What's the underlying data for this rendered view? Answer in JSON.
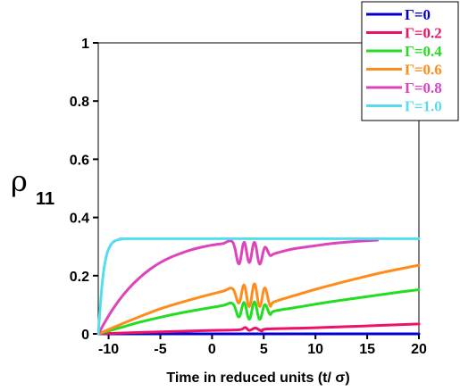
{
  "chart_data": {
    "type": "line",
    "title": "",
    "xlabel": "Time in reduced units (t/ σ)",
    "ylabel": {
      "symbol": "ρ",
      "subscript": "11"
    },
    "xlim": [
      -11,
      20
    ],
    "ylim": [
      0,
      1
    ],
    "x_ticks": [
      -10,
      -5,
      0,
      5,
      10,
      15,
      20
    ],
    "x_tick_labels": [
      "-10",
      "-5",
      "0",
      "5",
      "10",
      "15",
      "20"
    ],
    "y_ticks": [
      0,
      0.2,
      0.4,
      0.6,
      0.8,
      1
    ],
    "y_tick_labels": [
      "0",
      "0.2",
      "0.4",
      "0.6",
      "0.8",
      "1"
    ],
    "grid": false,
    "legend_position": "top-right",
    "series": [
      {
        "name": "Γ=0",
        "color": "#0000cc",
        "x": [
          -11,
          20
        ],
        "y": [
          0,
          0
        ]
      },
      {
        "name": "Γ=0.2",
        "color": "#ee1166",
        "x": [
          -11,
          -5,
          0,
          2.6,
          3.2,
          3.6,
          4.2,
          4.8,
          5.4,
          10,
          20
        ],
        "y": [
          0,
          0.007,
          0.012,
          0.014,
          0.022,
          0.012,
          0.02,
          0.01,
          0.017,
          0.021,
          0.034
        ]
      },
      {
        "name": "Γ=0.4",
        "color": "#22dd22",
        "x": [
          -11,
          -9,
          -7,
          -5,
          -3,
          -1,
          1,
          2,
          2.6,
          3.1,
          3.6,
          4.1,
          4.6,
          5.1,
          5.6,
          6,
          8,
          10,
          12,
          14,
          16,
          18,
          20
        ],
        "y": [
          0,
          0.02,
          0.04,
          0.057,
          0.072,
          0.085,
          0.097,
          0.104,
          0.058,
          0.108,
          0.05,
          0.11,
          0.05,
          0.1,
          0.067,
          0.078,
          0.09,
          0.102,
          0.113,
          0.123,
          0.133,
          0.143,
          0.152
        ]
      },
      {
        "name": "Γ=0.6",
        "color": "#ff8c1a",
        "x": [
          -11,
          -9,
          -7,
          -5,
          -3,
          -1,
          1,
          2,
          2.6,
          3.1,
          3.6,
          4.1,
          4.6,
          5.1,
          5.6,
          6,
          8,
          10,
          12,
          14,
          16,
          18,
          20
        ],
        "y": [
          0,
          0.03,
          0.059,
          0.086,
          0.108,
          0.128,
          0.146,
          0.155,
          0.106,
          0.168,
          0.093,
          0.172,
          0.094,
          0.158,
          0.097,
          0.11,
          0.132,
          0.153,
          0.172,
          0.19,
          0.207,
          0.222,
          0.236
        ]
      },
      {
        "name": "Γ=0.8",
        "color": "#dd44bb",
        "x": [
          -11,
          -10,
          -9,
          -8,
          -7,
          -6,
          -5,
          -4,
          -3,
          -2,
          -1,
          0,
          1,
          2,
          2.6,
          3.1,
          3.6,
          4.1,
          4.6,
          5.1,
          5.6,
          6,
          7,
          8,
          10,
          12,
          14,
          16
        ],
        "y": [
          0,
          0.062,
          0.115,
          0.158,
          0.193,
          0.222,
          0.245,
          0.263,
          0.277,
          0.289,
          0.298,
          0.305,
          0.31,
          0.315,
          0.24,
          0.315,
          0.245,
          0.315,
          0.24,
          0.297,
          0.27,
          0.275,
          0.285,
          0.293,
          0.303,
          0.312,
          0.318,
          0.322
        ]
      },
      {
        "name": "Γ=1.0",
        "color": "#55ddee",
        "x": [
          -11,
          -10.6,
          -10.2,
          -9.8,
          -9.5,
          -9.2,
          -8.8,
          -8,
          0,
          10,
          20
        ],
        "y": [
          0,
          0.18,
          0.27,
          0.305,
          0.317,
          0.322,
          0.325,
          0.327,
          0.327,
          0.327,
          0.327
        ]
      }
    ]
  }
}
